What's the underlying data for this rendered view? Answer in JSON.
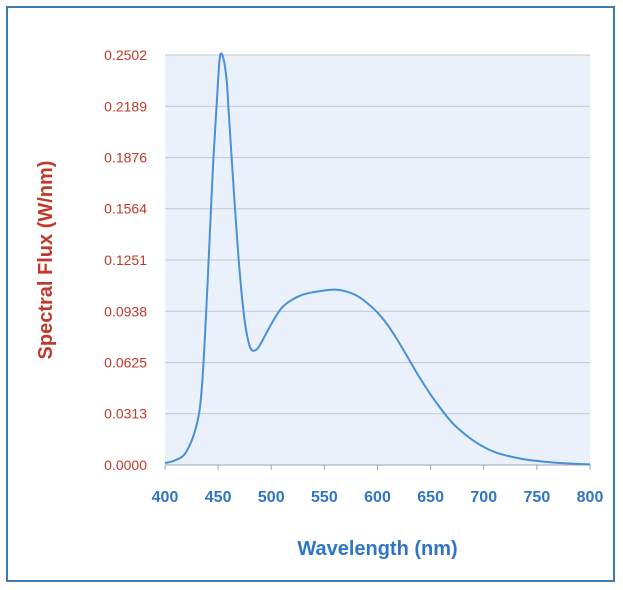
{
  "chart_data": {
    "type": "line",
    "title": "",
    "xlabel": "Wavelength (nm)",
    "ylabel": "Spectral Flux (W/nm)",
    "xlim": [
      400,
      800
    ],
    "ylim": [
      0,
      0.2502
    ],
    "x_ticks": [
      "400",
      "450",
      "500",
      "550",
      "600",
      "650",
      "700",
      "750",
      "800"
    ],
    "y_ticks": [
      "0.0000",
      "0.0313",
      "0.0625",
      "0.0938",
      "0.1251",
      "0.1564",
      "0.1876",
      "0.2189",
      "0.2502"
    ],
    "grid": true,
    "legend": "none",
    "colors": {
      "line": "#4a90d9",
      "plot_background": "#eaf1fb",
      "grid": "#bfc8d6",
      "frame": "#3f78b6",
      "ylabel": "#c0392b",
      "xlabel": "#2e75c9"
    },
    "series": [
      {
        "x": [
          400,
          410,
          420,
          430,
          435,
          440,
          445,
          450,
          452,
          455,
          458,
          460,
          465,
          470,
          475,
          480,
          485,
          490,
          500,
          510,
          520,
          530,
          540,
          550,
          560,
          570,
          580,
          590,
          600,
          610,
          620,
          630,
          640,
          650,
          660,
          670,
          680,
          690,
          700,
          710,
          720,
          730,
          740,
          750,
          760,
          770,
          780,
          790,
          800
        ],
        "y": [
          0.0012,
          0.003,
          0.008,
          0.025,
          0.05,
          0.11,
          0.18,
          0.235,
          0.2502,
          0.248,
          0.235,
          0.215,
          0.165,
          0.12,
          0.088,
          0.072,
          0.07,
          0.074,
          0.086,
          0.096,
          0.101,
          0.104,
          0.1055,
          0.1065,
          0.107,
          0.106,
          0.1035,
          0.099,
          0.093,
          0.085,
          0.075,
          0.064,
          0.053,
          0.043,
          0.034,
          0.026,
          0.02,
          0.015,
          0.011,
          0.008,
          0.006,
          0.0045,
          0.0033,
          0.0025,
          0.0018,
          0.0013,
          0.0009,
          0.0006,
          0.0004
        ]
      }
    ]
  }
}
